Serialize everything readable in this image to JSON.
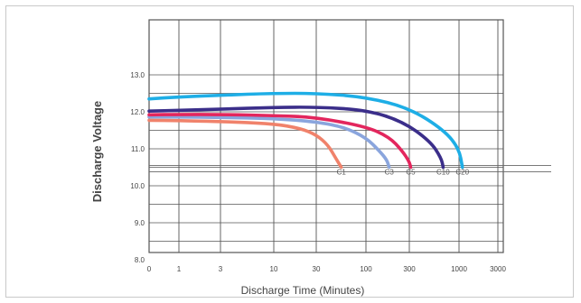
{
  "chart_data": {
    "type": "line",
    "xlabel": "Discharge Time (Minutes)",
    "ylabel": "Discharge Voltage",
    "x_scale": "categorical-log",
    "x_ticks": [
      "0",
      "1",
      "3",
      "10",
      "30",
      "100",
      "300",
      "1000",
      "3000"
    ],
    "y_ticks": [
      "8.0",
      "9.0",
      "10.0",
      "11.0",
      "12.0",
      "13.0"
    ],
    "ylim": [
      7.6,
      13.4
    ],
    "series": [
      {
        "name": "C1",
        "color": "#f0826b",
        "points": [
          [
            0,
            11.77
          ],
          [
            1,
            11.76
          ],
          [
            3,
            11.74
          ],
          [
            10,
            11.68
          ],
          [
            20,
            11.55
          ],
          [
            30,
            11.38
          ],
          [
            40,
            11.1
          ],
          [
            48,
            10.75
          ],
          [
            55,
            10.5
          ]
        ]
      },
      {
        "name": "C3",
        "color": "#8aa5dd",
        "points": [
          [
            0,
            11.86
          ],
          [
            1,
            11.86
          ],
          [
            3,
            11.85
          ],
          [
            10,
            11.82
          ],
          [
            30,
            11.73
          ],
          [
            60,
            11.58
          ],
          [
            100,
            11.3
          ],
          [
            140,
            10.95
          ],
          [
            170,
            10.7
          ],
          [
            180,
            10.5
          ]
        ]
      },
      {
        "name": "C5",
        "color": "#e3265d",
        "points": [
          [
            0,
            11.92
          ],
          [
            1,
            11.93
          ],
          [
            3,
            11.93
          ],
          [
            10,
            11.9
          ],
          [
            30,
            11.85
          ],
          [
            100,
            11.6
          ],
          [
            180,
            11.32
          ],
          [
            250,
            10.95
          ],
          [
            300,
            10.65
          ],
          [
            310,
            10.5
          ]
        ]
      },
      {
        "name": "C10",
        "color": "#3b2e8a",
        "points": [
          [
            0,
            12.02
          ],
          [
            1,
            12.04
          ],
          [
            3,
            12.07
          ],
          [
            10,
            12.12
          ],
          [
            30,
            12.13
          ],
          [
            100,
            12.05
          ],
          [
            250,
            11.75
          ],
          [
            500,
            11.2
          ],
          [
            650,
            10.75
          ],
          [
            680,
            10.5
          ]
        ]
      },
      {
        "name": "C20",
        "color": "#1eaee6",
        "points": [
          [
            0,
            12.35
          ],
          [
            1,
            12.4
          ],
          [
            3,
            12.45
          ],
          [
            10,
            12.5
          ],
          [
            30,
            12.5
          ],
          [
            100,
            12.4
          ],
          [
            300,
            12.1
          ],
          [
            700,
            11.5
          ],
          [
            1000,
            11.0
          ],
          [
            1100,
            10.5
          ]
        ]
      }
    ],
    "grid": true
  }
}
